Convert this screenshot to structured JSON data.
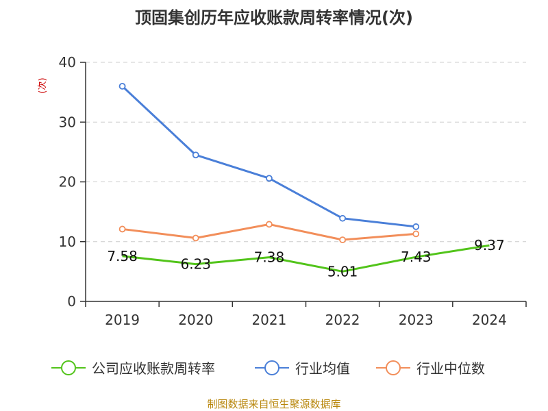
{
  "chart_data": {
    "type": "line",
    "title": "顶固集创历年应收账款周转率情况(次)",
    "ylabel": "(次)",
    "xlabel": "",
    "categories": [
      "2019",
      "2020",
      "2021",
      "2022",
      "2023",
      "2024"
    ],
    "ylim": [
      0,
      40
    ],
    "yticks": [
      0,
      10,
      20,
      30,
      40
    ],
    "grid": true,
    "legend_position": "bottom",
    "series": [
      {
        "name": "公司应收账款周转率",
        "color": "#52c41a",
        "values": [
          7.58,
          6.23,
          7.38,
          5.01,
          7.43,
          9.37
        ],
        "labels": [
          "7.58",
          "6.23",
          "7.38",
          "5.01",
          "7.43",
          "9.37"
        ]
      },
      {
        "name": "行业均值",
        "color": "#4a7fd8",
        "values": [
          36.0,
          24.5,
          20.6,
          13.9,
          12.5,
          null
        ]
      },
      {
        "name": "行业中位数",
        "color": "#f28e5a",
        "values": [
          12.1,
          10.6,
          12.9,
          10.3,
          11.3,
          null
        ]
      }
    ]
  },
  "footer": "制图数据来自恒生聚源数据库"
}
